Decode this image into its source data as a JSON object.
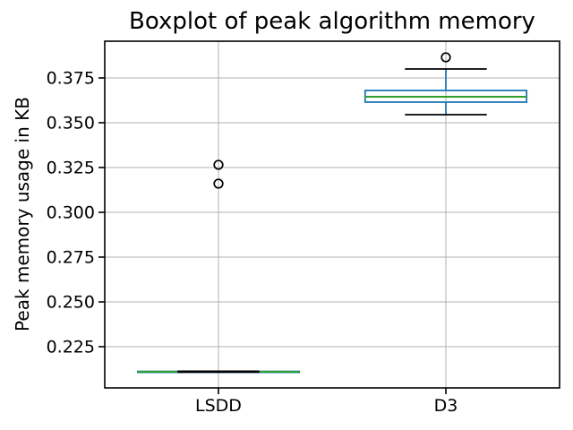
{
  "chart_data": {
    "type": "boxplot",
    "title": "Boxplot of peak algorithm memory",
    "xlabel": "",
    "ylabel": "Peak memory usage in KB",
    "categories": [
      "LSDD",
      "D3"
    ],
    "series": [
      {
        "name": "LSDD",
        "position": 1,
        "whisker_low": 0.2108,
        "q1": 0.2109,
        "median": 0.211,
        "q3": 0.2112,
        "whisker_high": 0.2113,
        "outliers": [
          0.3265,
          0.316
        ]
      },
      {
        "name": "D3",
        "position": 2,
        "whisker_low": 0.3545,
        "q1": 0.3615,
        "median": 0.3645,
        "q3": 0.368,
        "whisker_high": 0.38,
        "outliers": [
          0.3865
        ]
      }
    ],
    "yticks": [
      0.225,
      0.25,
      0.275,
      0.3,
      0.325,
      0.35,
      0.375
    ],
    "ytick_decimals": 3,
    "ylim": [
      0.202,
      0.3955
    ],
    "xlim": [
      0.5,
      2.5
    ],
    "grid": true,
    "legend": false,
    "box_width": 0.71,
    "cap_width": 0.36,
    "colors": {
      "box": "#1f77b4",
      "whisker": "#1f77b4",
      "median": "#2ca02c",
      "cap": "#000000",
      "flier": "#000000",
      "grid": "#b0b0b0",
      "spine": "#000000",
      "text": "#000000",
      "background": "#ffffff"
    }
  }
}
